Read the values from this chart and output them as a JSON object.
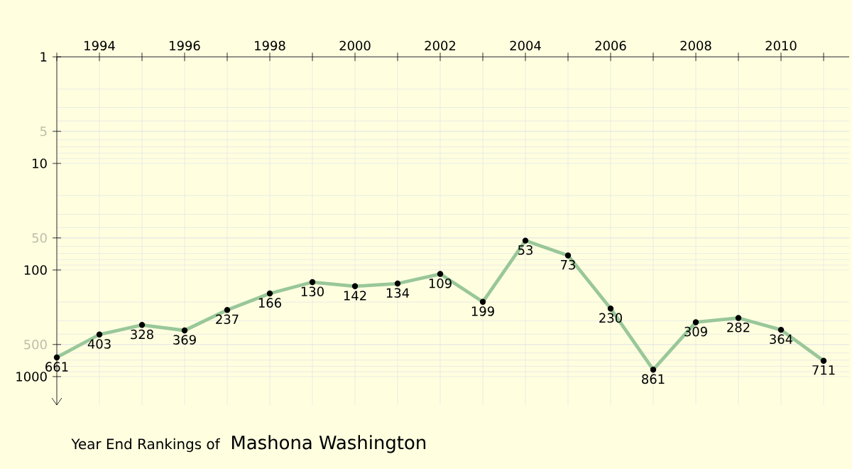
{
  "chart_data": {
    "type": "line",
    "title": "Year End Rankings of",
    "subtitle": "Mashona Washington",
    "x": [
      1993,
      1994,
      1995,
      1996,
      1997,
      1998,
      1999,
      2000,
      2001,
      2002,
      2003,
      2004,
      2005,
      2006,
      2007,
      2008,
      2009,
      2010,
      2011
    ],
    "series": [
      {
        "color": "#99c799",
        "values": [
          661,
          403,
          328,
          369,
          237,
          166,
          130,
          142,
          134,
          109,
          199,
          53,
          73,
          230,
          861,
          309,
          282,
          364,
          711
        ]
      }
    ],
    "data_labels": true,
    "log": true,
    "marker": "circle",
    "line_style": "solid",
    "grid": true,
    "xlim": [
      1993,
      2011.6
    ],
    "xticks": [
      {
        "value": 1993,
        "label": null
      },
      1994,
      {
        "value": 1995,
        "label": null
      },
      1996,
      {
        "value": 1997,
        "label": null
      },
      1998,
      {
        "value": 1999,
        "label": null
      },
      2000,
      {
        "value": 2001,
        "label": null
      },
      2002,
      {
        "value": 2003,
        "label": null
      },
      2004,
      {
        "value": 2005,
        "label": null
      },
      2006,
      {
        "value": 2007,
        "label": null
      },
      2008,
      {
        "value": 2009,
        "label": null
      },
      2010,
      {
        "value": 2011,
        "label": null
      }
    ],
    "ylim": [
      1850,
      1
    ],
    "yticks": [
      1,
      5,
      10,
      50,
      100,
      500,
      1000
    ]
  }
}
